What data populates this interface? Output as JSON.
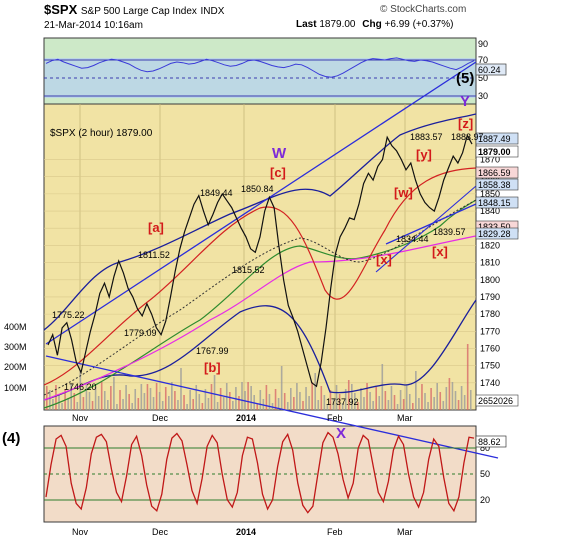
{
  "header": {
    "symbol": "$SPX",
    "name": "S&P 500 Large Cap Index",
    "exchange": "INDX",
    "date": "21-Mar-2014 10:16am",
    "last_label": "Last",
    "last_value": "1879.00",
    "chg_label": "Chg",
    "chg_value": "+6.99 (+0.37%)",
    "watermark": "© StockCharts.com"
  },
  "chart_data": [
    {
      "type": "line",
      "panel": "upper indicator (RSI-style oscillator)",
      "ylim": [
        0,
        90
      ],
      "tick_labels": [
        "90",
        "70",
        "50",
        "30"
      ],
      "value_labels": [
        "60.24"
      ],
      "series": [
        {
          "values": [
            56,
            60,
            62,
            58,
            55,
            52,
            49,
            50,
            53,
            57,
            60,
            62,
            61,
            58,
            55,
            50,
            46,
            44,
            45,
            48,
            52,
            56,
            58,
            57,
            55,
            56,
            59,
            62,
            60,
            57,
            54,
            52,
            53,
            56,
            60,
            61,
            59,
            56,
            53,
            51,
            50,
            52,
            55,
            54,
            50,
            45,
            40,
            37,
            36,
            38,
            42,
            47,
            52,
            57,
            61,
            63,
            62,
            61,
            63,
            64,
            62,
            60,
            59,
            61,
            60,
            58,
            55,
            52,
            49,
            47,
            51,
            56,
            60
          ]
        }
      ]
    },
    {
      "type": "line",
      "panel": "price",
      "title": "$SPX (2 hour) 1879.00",
      "x_tick_labels": [
        "Nov",
        "Dec",
        "2014",
        "Feb",
        "Mar"
      ],
      "y_tick_labels": [
        "1870",
        "1860",
        "1850",
        "1840",
        "1830",
        "1820",
        "1810",
        "1800",
        "1790",
        "1780",
        "1770",
        "1760",
        "1750",
        "1740"
      ],
      "volume_tick_labels": [
        "400M",
        "300M",
        "200M",
        "100M"
      ],
      "ylim": [
        1730,
        1900
      ],
      "price_labels": [
        "1775.22",
        "1746.20",
        "1811.52",
        "1779.09",
        "1767.99",
        "1849.44",
        "1850.84",
        "1815.52",
        "1737.92",
        "1834.44",
        "1883.57",
        "1883.97",
        "1839.57"
      ],
      "right_value_labels": [
        "1887.49",
        "1879.00",
        "1866.59",
        "1858.38",
        "1848.15",
        "1833.50",
        "1829.28",
        "2652026"
      ],
      "wave_labels": [
        "[a]",
        "[b]",
        "[c]",
        "W",
        "[w]",
        "[x]",
        "[x]",
        "[y]",
        "[z]",
        "X",
        "Y",
        "(5)",
        "(4)"
      ],
      "series": [
        {
          "name": "$SPX",
          "values": [
            1762,
            1768,
            1756,
            1772,
            1775,
            1765,
            1752,
            1746,
            1758,
            1770,
            1780,
            1792,
            1798,
            1790,
            1802,
            1811,
            1804,
            1795,
            1790,
            1783,
            1779,
            1786,
            1780,
            1772,
            1768,
            1776,
            1790,
            1805,
            1818,
            1828,
            1836,
            1844,
            1849,
            1840,
            1832,
            1838,
            1845,
            1850,
            1846,
            1842,
            1836,
            1830,
            1825,
            1818,
            1816,
            1825,
            1840,
            1848,
            1842,
            1820,
            1800,
            1785,
            1778,
            1770,
            1760,
            1750,
            1740,
            1738,
            1752,
            1772,
            1795,
            1815,
            1825,
            1830,
            1836,
            1835,
            1844,
            1856,
            1862,
            1858,
            1866,
            1870,
            1883,
            1878,
            1875,
            1870,
            1864,
            1868,
            1858,
            1850,
            1845,
            1842,
            1840,
            1848,
            1858,
            1865,
            1872,
            1868,
            1874,
            1884,
            1879
          ]
        }
      ]
    },
    {
      "type": "line",
      "panel": "lower indicator (stochastic-style oscillator)",
      "ylim": [
        0,
        100
      ],
      "tick_labels": [
        "80",
        "50",
        "20"
      ],
      "value_labels": [
        "88.62"
      ],
      "series": [
        {
          "values": [
            25,
            60,
            88,
            92,
            80,
            40,
            18,
            12,
            35,
            72,
            90,
            93,
            85,
            55,
            30,
            20,
            48,
            82,
            91,
            70,
            38,
            15,
            10,
            28,
            66,
            89,
            94,
            86,
            60,
            32,
            18,
            45,
            80,
            92,
            84,
            50,
            22,
            14,
            30,
            70,
            90,
            88,
            62,
            28,
            12,
            22,
            58,
            85,
            93,
            76,
            40,
            16,
            8,
            15,
            50,
            84,
            95,
            90,
            72,
            44,
            24,
            40,
            78,
            92,
            87,
            58,
            30,
            20,
            42,
            76,
            91,
            82,
            50,
            25,
            14,
            30,
            66,
            88,
            80,
            46,
            18,
            10,
            25,
            62,
            90,
            89
          ]
        }
      ]
    }
  ]
}
